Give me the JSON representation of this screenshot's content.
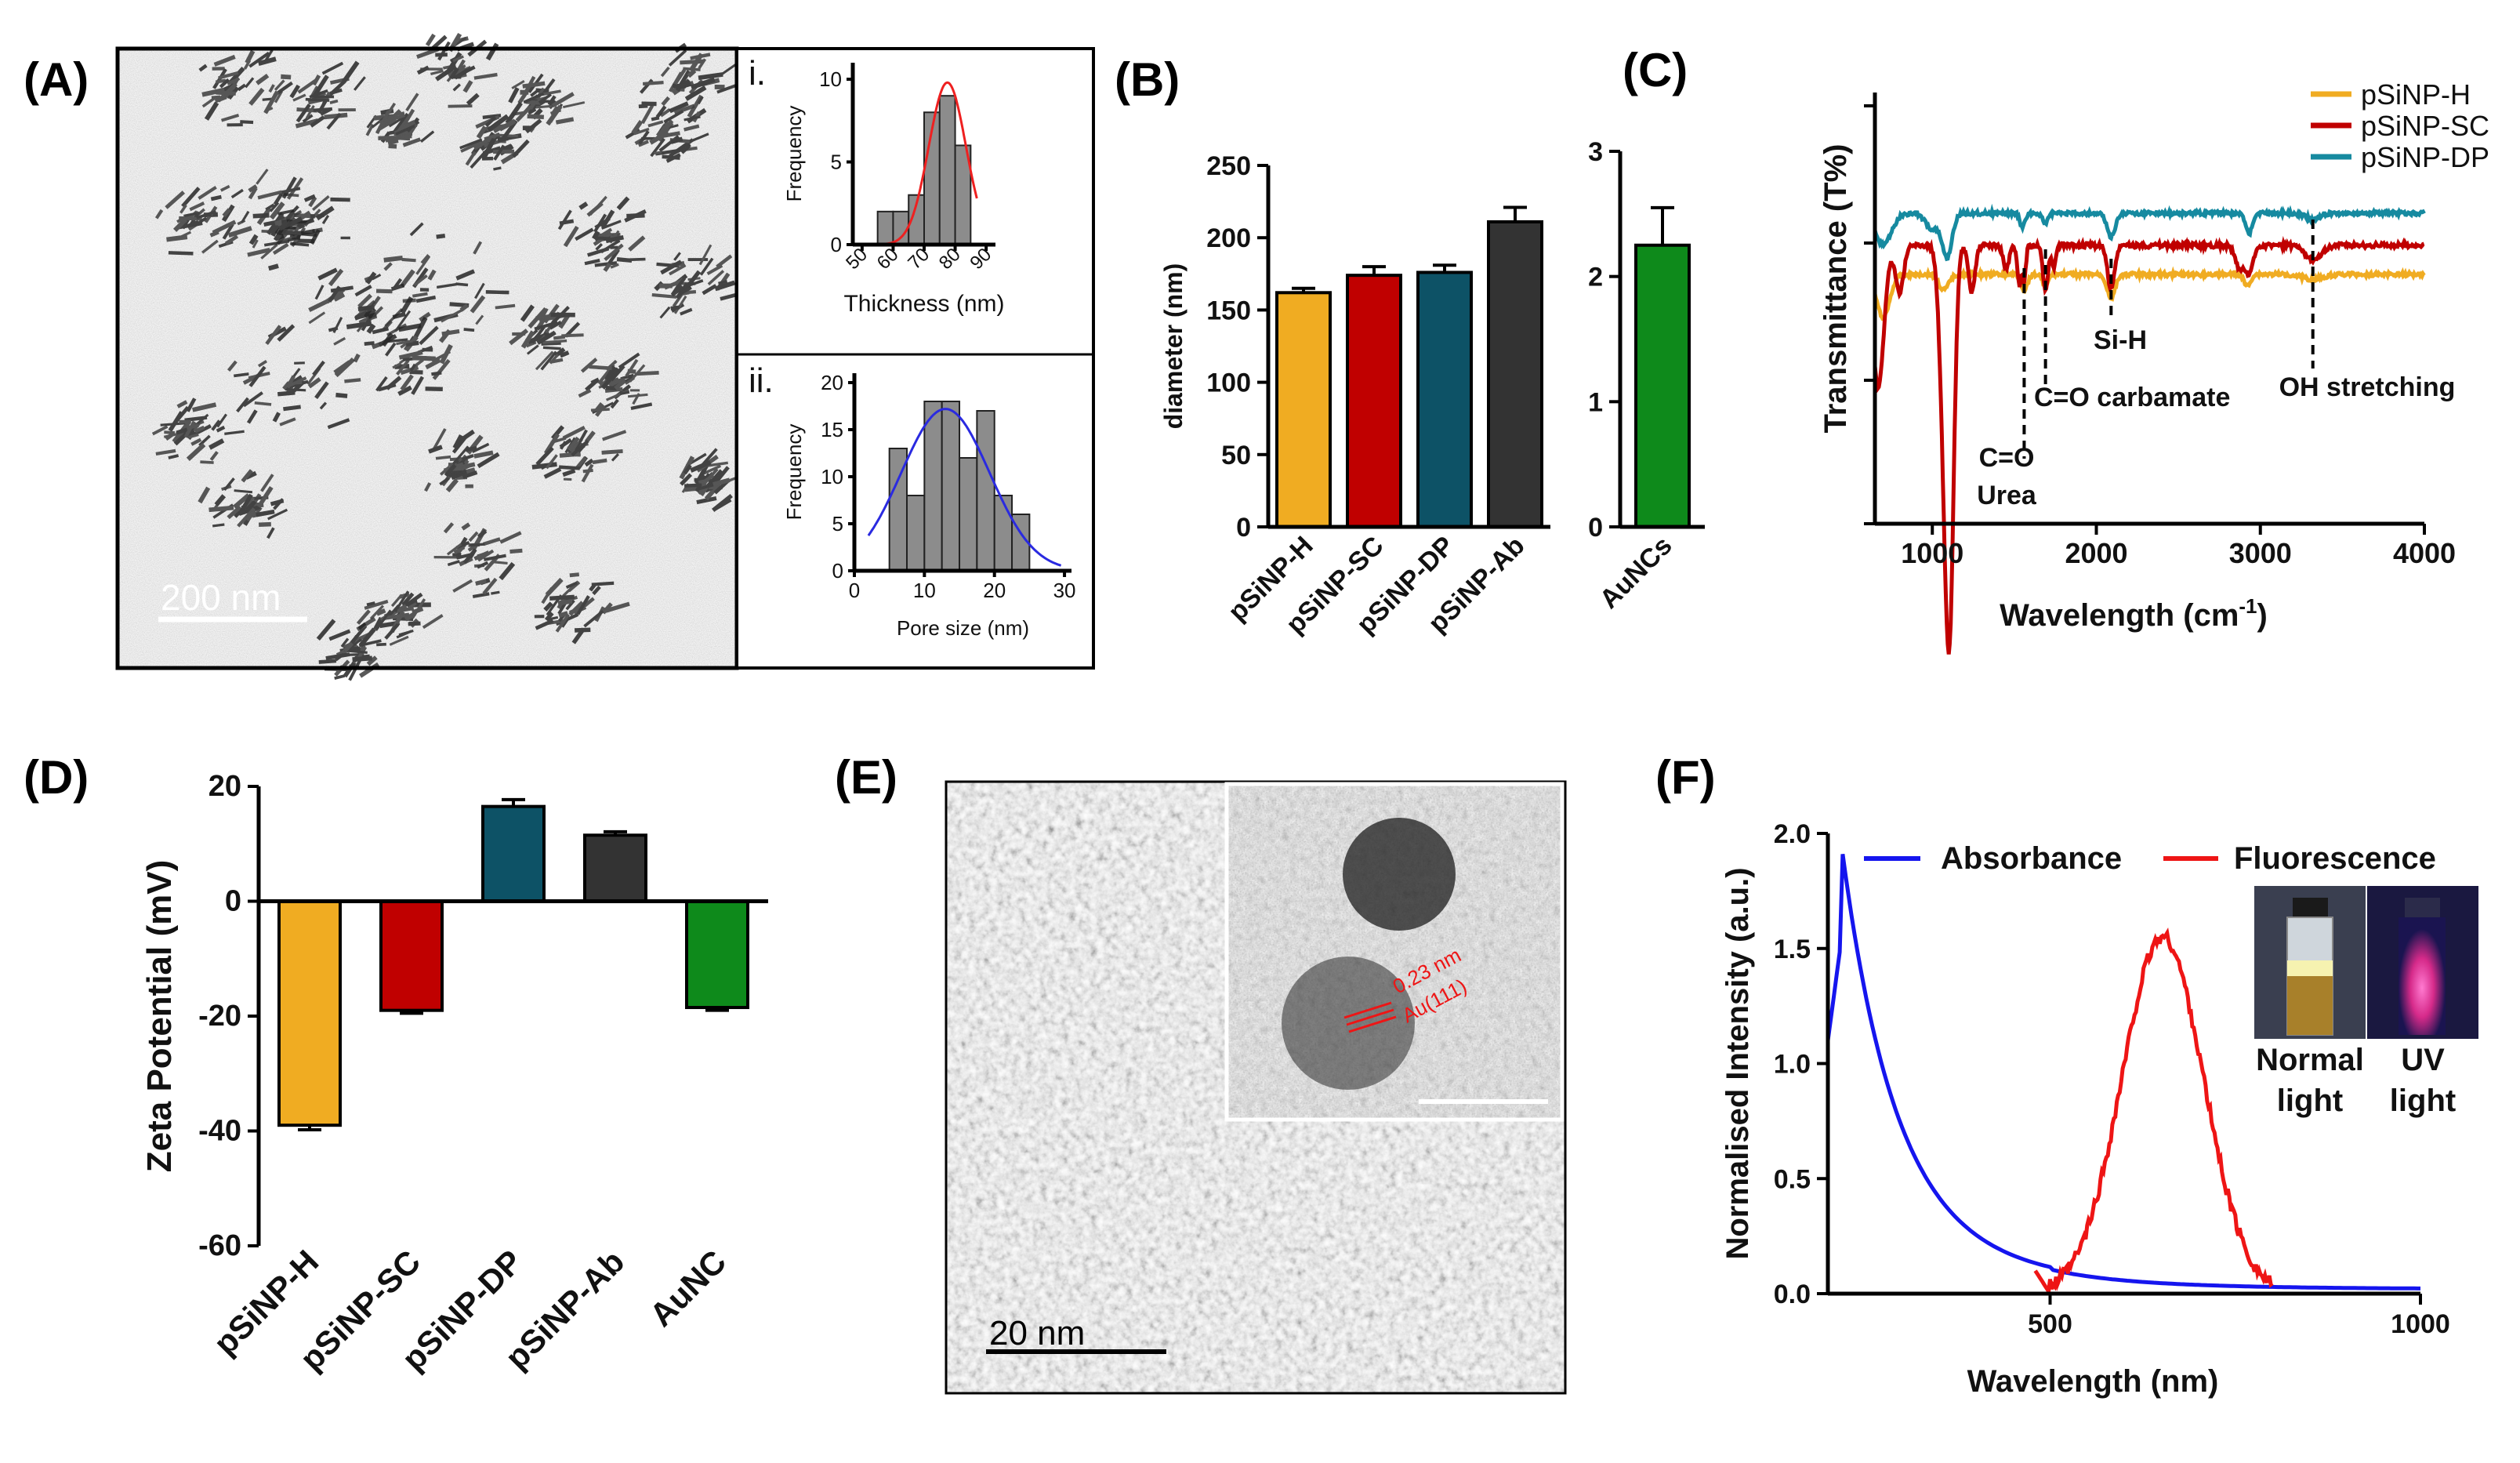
{
  "panels": {
    "A": "(A)",
    "B": "(B)",
    "C": "(C)",
    "D": "(D)",
    "E": "(E)",
    "F": "(F)"
  },
  "colors": {
    "yellow": "#f0ac22",
    "red": "#c00000",
    "teal": "#0d5266",
    "dark": "#333333",
    "green": "#0e8a1b",
    "cyan": "#168aa0",
    "blue": "#1515ee",
    "fluo": "#ee1515",
    "hist": "#8c8c8c"
  },
  "tem_A": {
    "scale_bar": "200  nm"
  },
  "tem_E": {
    "scale_bar": "20  nm",
    "lattice_spacing": "0.23 nm",
    "lattice_plane": "Au(111)"
  },
  "chart_data": [
    {
      "id": "A-i",
      "type": "bar",
      "title": "i.",
      "xlabel": "Thickness (nm)",
      "ylabel": "Frequency",
      "bin_edges": [
        55,
        60,
        65,
        70,
        75,
        80,
        85
      ],
      "values": [
        2,
        2,
        3,
        8,
        9,
        6
      ],
      "xticks": [
        50,
        60,
        70,
        80,
        90
      ],
      "xlim": [
        47,
        93
      ],
      "ylim": [
        0,
        11
      ],
      "yticks": [
        0,
        5,
        10
      ],
      "fit": {
        "mean": 77.5,
        "sd": 6,
        "amp": 9.8
      }
    },
    {
      "id": "A-ii",
      "type": "bar",
      "title": "ii.",
      "xlabel": "Pore size (nm)",
      "ylabel": "Frequency",
      "bin_edges": [
        5,
        7.5,
        10,
        12.5,
        15,
        17.5,
        20,
        22.5,
        25,
        27.5
      ],
      "values": [
        13,
        8,
        18,
        18,
        12,
        17,
        8,
        6,
        0
      ],
      "xticks": [
        0,
        10,
        20,
        30
      ],
      "xlim": [
        0,
        31
      ],
      "ylim": [
        0,
        21
      ],
      "yticks": [
        0,
        5,
        10,
        15,
        20
      ],
      "fit": {
        "mean": 13,
        "sd": 6.3,
        "amp": 17.2
      }
    },
    {
      "id": "B",
      "type": "bar",
      "ylabel": "diameter (nm)",
      "ylim": [
        0,
        250
      ],
      "yticks": [
        0,
        50,
        100,
        150,
        200,
        250
      ],
      "categories": [
        "pSiNP-H",
        "pSiNP-SC",
        "pSiNP-DP",
        "pSiNP-Ab"
      ],
      "values": [
        162,
        174,
        176,
        211
      ],
      "errors": [
        3,
        6,
        5,
        10
      ],
      "bar_colors": [
        "#f0ac22",
        "#c00000",
        "#0d5266",
        "#333333"
      ]
    },
    {
      "id": "B2",
      "type": "bar",
      "ylim": [
        0,
        3
      ],
      "yticks": [
        0,
        1,
        2,
        3
      ],
      "categories": [
        "AuNCs"
      ],
      "values": [
        2.25
      ],
      "errors": [
        0.3
      ],
      "bar_colors": [
        "#0e8a1b"
      ]
    },
    {
      "id": "C",
      "type": "line",
      "xlabel": "Wavelength (cm",
      "xlabel_sup": "-1",
      "xlabel_end": ")",
      "ylabel": "Transmittance (T%)",
      "xlim": [
        650,
        4000
      ],
      "xticks": [
        1000,
        2000,
        3000,
        4000
      ],
      "series": [
        {
          "name": "pSiNP-H",
          "color": "#f0ac22"
        },
        {
          "name": "pSiNP-SC",
          "color": "#c00000"
        },
        {
          "name": "pSiNP-DP",
          "color": "#168aa0"
        }
      ],
      "annotations": [
        {
          "text": "C=O",
          "x": 1560
        },
        {
          "text": "Urea",
          "x": 1560
        },
        {
          "text": "C=O carbamate",
          "x": 1690
        },
        {
          "text": "Si-H",
          "x": 2090
        },
        {
          "text": "OH stretching",
          "x": 3320
        }
      ]
    },
    {
      "id": "D",
      "type": "bar",
      "ylabel": "Zeta Potential (mV)",
      "ylim": [
        -60,
        20
      ],
      "yticks": [
        -60,
        -40,
        -20,
        0,
        20
      ],
      "categories": [
        "pSiNP-H",
        "pSiNP-SC",
        "pSiNP-DP",
        "pSiNP-Ab",
        "AuNC"
      ],
      "values": [
        -39,
        -19,
        16.5,
        11.5,
        -18.5
      ],
      "errors": [
        0.8,
        0.5,
        1.2,
        0.6,
        0.5
      ],
      "bar_colors": [
        "#f0ac22",
        "#c00000",
        "#0d5266",
        "#333333",
        "#0e8a1b"
      ]
    },
    {
      "id": "F",
      "type": "line",
      "xlabel": "Wavelength (nm)",
      "ylabel": "Normalised Intensity (a.u.)",
      "xlim": [
        200,
        1000
      ],
      "ylim": [
        0,
        2
      ],
      "xticks": [
        500,
        1000
      ],
      "yticks": [
        0,
        0.5,
        1,
        1.5,
        2
      ],
      "series": [
        {
          "name": "Absorbance",
          "color": "#1515ee"
        },
        {
          "name": "Fluorescence",
          "color": "#ee1515"
        }
      ],
      "photo_labels": [
        [
          "Normal",
          "light"
        ],
        [
          "UV",
          "light"
        ]
      ]
    }
  ]
}
